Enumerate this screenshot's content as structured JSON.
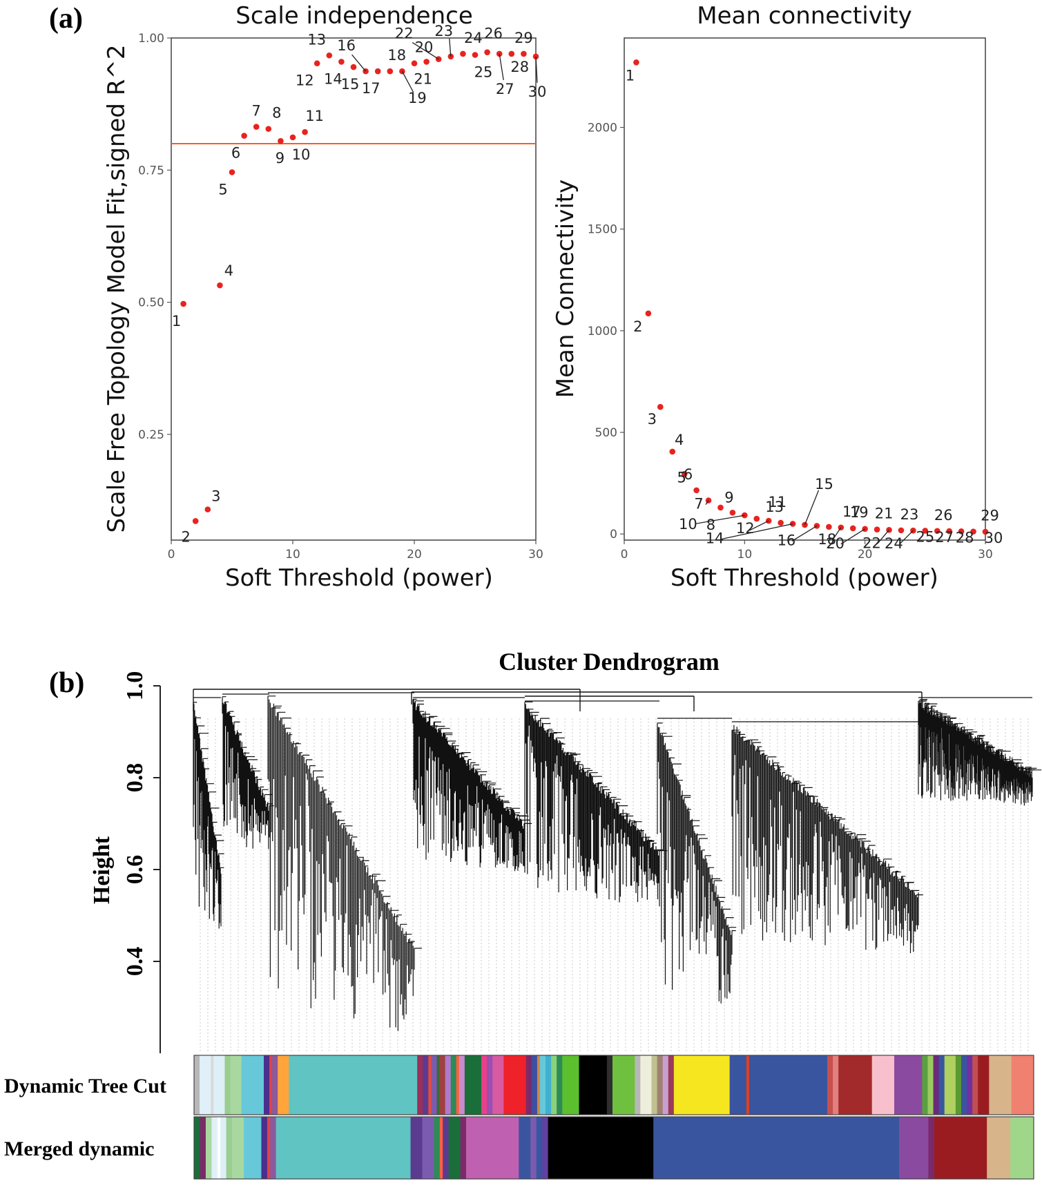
{
  "panels": {
    "a": {
      "tag": "(a)"
    },
    "b": {
      "tag": "(b)"
    }
  },
  "chart_data": [
    {
      "id": "scale-independence",
      "type": "scatter",
      "title": "Scale independence",
      "xlabel": "Soft Threshold (power)",
      "ylabel": "Scale Free Topology Model Fit,signed R^2",
      "xlim": [
        0,
        30
      ],
      "ylim": [
        0.05,
        1.0
      ],
      "xticks": [
        0,
        10,
        20,
        30
      ],
      "yticks": [
        0.25,
        0.5,
        0.75,
        1.0
      ],
      "ytick_labels": [
        "0.25",
        "0.50",
        "0.75",
        "1.00"
      ],
      "threshold_line": 0.8,
      "point_color": "#e8231f",
      "line_color": "#ff5a1f",
      "x": [
        1,
        2,
        3,
        4,
        5,
        6,
        7,
        8,
        9,
        10,
        11,
        12,
        13,
        14,
        15,
        16,
        17,
        18,
        19,
        20,
        21,
        22,
        23,
        24,
        25,
        26,
        27,
        28,
        29,
        30
      ],
      "y": [
        0.497,
        0.086,
        0.108,
        0.532,
        0.746,
        0.815,
        0.832,
        0.828,
        0.805,
        0.812,
        0.822,
        0.952,
        0.967,
        0.955,
        0.945,
        0.937,
        0.937,
        0.937,
        0.937,
        0.952,
        0.955,
        0.96,
        0.965,
        0.97,
        0.968,
        0.973,
        0.97,
        0.97,
        0.97,
        0.965
      ],
      "labels": [
        "1",
        "2",
        "3",
        "4",
        "5",
        "6",
        "7",
        "8",
        "9",
        "10",
        "11",
        "12",
        "13",
        "14",
        "15",
        "16",
        "17",
        "18",
        "19",
        "20",
        "21",
        "22",
        "23",
        "24",
        "25",
        "26",
        "27",
        "28",
        "29",
        "30"
      ]
    },
    {
      "id": "mean-connectivity",
      "type": "scatter",
      "title": "Mean connectivity",
      "xlabel": "Soft Threshold (power)",
      "ylabel": "Mean Connectivity",
      "xlim": [
        0,
        30
      ],
      "ylim": [
        -30,
        2440
      ],
      "xticks": [
        0,
        10,
        20,
        30
      ],
      "yticks": [
        0,
        500,
        1000,
        1500,
        2000
      ],
      "ytick_labels": [
        "0",
        "500",
        "1000",
        "1500",
        "2000"
      ],
      "point_color": "#e8231f",
      "x": [
        1,
        2,
        3,
        4,
        5,
        6,
        7,
        8,
        9,
        10,
        11,
        12,
        13,
        14,
        15,
        16,
        17,
        18,
        19,
        20,
        21,
        22,
        23,
        24,
        25,
        26,
        27,
        28,
        29,
        30
      ],
      "y": [
        2320,
        1085,
        625,
        405,
        295,
        215,
        165,
        130,
        105,
        92,
        75,
        65,
        55,
        50,
        45,
        40,
        35,
        32,
        28,
        25,
        22,
        20,
        18,
        17,
        16,
        15,
        14,
        13,
        12,
        11
      ],
      "labels": [
        "1",
        "2",
        "3",
        "4",
        "5",
        "6",
        "7",
        "8",
        "9",
        "10",
        "11",
        "12",
        "13",
        "14",
        "15",
        "16",
        "17",
        "18",
        "19",
        "20",
        "21",
        "22",
        "23",
        "24",
        "25",
        "26",
        "27",
        "28",
        "29",
        "30"
      ]
    },
    {
      "id": "cluster-dendrogram",
      "type": "dendrogram",
      "title": "Cluster Dendrogram",
      "ylabel": "Height",
      "ylim": [
        0.2,
        1.0
      ],
      "yticks": [
        0.4,
        0.6,
        0.8,
        1.0
      ],
      "ytick_labels": [
        "0.4",
        "0.6",
        "0.8",
        "1.0"
      ],
      "color_rows": [
        {
          "label": "Dynamic Tree Cut",
          "blocks": [
            [
              "#b8b8b8",
              1
            ],
            [
              "#e0f0f8",
              2
            ],
            [
              "#d9d9d9",
              0.5
            ],
            [
              "#ddeff7",
              2
            ],
            [
              "#9acd8f",
              1
            ],
            [
              "#a8d8a0",
              2
            ],
            [
              "#66c8d9",
              4
            ],
            [
              "#4b2e8f",
              1
            ],
            [
              "#d44",
              0.5
            ],
            [
              "#8b5a9e",
              1
            ],
            [
              "#ffa53a",
              2
            ],
            [
              "#5fc4c2",
              23
            ],
            [
              "#9b2f5a",
              1
            ],
            [
              "#5b3b90",
              1
            ],
            [
              "#e84a3b",
              0.5
            ],
            [
              "#7b5bb0",
              1
            ],
            [
              "#3a6b3a",
              0.5
            ],
            [
              "#a04040",
              1
            ],
            [
              "#b07acc",
              1
            ],
            [
              "#2e8b57",
              1
            ],
            [
              "#ff6040",
              0.5
            ],
            [
              "#c98bcc",
              1
            ],
            [
              "#1a6e3a",
              3
            ],
            [
              "#e8408a",
              1
            ],
            [
              "#9b4fb0",
              1
            ],
            [
              "#d85aa0",
              2
            ],
            [
              "#ee2228",
              4
            ],
            [
              "#7a2a6a",
              1
            ],
            [
              "#3f4fa0",
              1
            ],
            [
              "#cc8844",
              0.5
            ],
            [
              "#66c8d9",
              1
            ],
            [
              "#3fb0d0",
              1
            ],
            [
              "#8bd17a",
              1
            ],
            [
              "#2e8b57",
              1
            ],
            [
              "#5bbf2e",
              3
            ],
            [
              "#000000",
              5
            ],
            [
              "#2f2f2f",
              1
            ],
            [
              "#70c040",
              4
            ],
            [
              "#b8b8b8",
              1
            ],
            [
              "#eeeedd",
              2
            ],
            [
              "#c0c090",
              1
            ],
            [
              "#a08070",
              1
            ],
            [
              "#c8a0d0",
              1
            ],
            [
              "#9b3a5a",
              1
            ],
            [
              "#f5e620",
              10
            ],
            [
              "#3a55a0",
              3
            ],
            [
              "#e04020",
              0.5
            ],
            [
              "#3a55a0",
              14
            ],
            [
              "#c85050",
              1
            ],
            [
              "#e08080",
              1
            ],
            [
              "#a32a2a",
              6
            ],
            [
              "#f8c0cc",
              4
            ],
            [
              "#8a4aa0",
              5
            ],
            [
              "#5aa040",
              1
            ],
            [
              "#9cc860",
              1
            ],
            [
              "#6a2a7a",
              1
            ],
            [
              "#3a55a0",
              1
            ],
            [
              "#b0d060",
              2
            ],
            [
              "#5a9a30",
              1
            ],
            [
              "#3a55a0",
              1
            ],
            [
              "#7030a0",
              1
            ],
            [
              "#c05050",
              1
            ],
            [
              "#9b1c20",
              2
            ],
            [
              "#d8b48a",
              4
            ],
            [
              "#f08070",
              4
            ]
          ]
        },
        {
          "label": "Merged dynamic",
          "blocks": [
            [
              "#1b6e3a",
              1
            ],
            [
              "#7a2a6a",
              1
            ],
            [
              "#a8d8a0",
              1
            ],
            [
              "#e0f0f8",
              1
            ],
            [
              "#ffffff",
              0.5
            ],
            [
              "#ddeff7",
              1
            ],
            [
              "#9acd8f",
              1
            ],
            [
              "#a8d8a0",
              2
            ],
            [
              "#66c8d9",
              3
            ],
            [
              "#4b2e8f",
              1
            ],
            [
              "#d44",
              0.5
            ],
            [
              "#8b5a9e",
              1
            ],
            [
              "#5fc4c2",
              23
            ],
            [
              "#5b3b90",
              2
            ],
            [
              "#7b5bb0",
              2
            ],
            [
              "#2e8b57",
              1
            ],
            [
              "#ff6040",
              0.5
            ],
            [
              "#5b3b90",
              1
            ],
            [
              "#1a6e3a",
              2
            ],
            [
              "#7b2a6a",
              1
            ],
            [
              "#c060b0",
              9
            ],
            [
              "#3a55a0",
              2
            ],
            [
              "#7b5bb0",
              1
            ],
            [
              "#3a55a0",
              1
            ],
            [
              "#6040a0",
              1
            ],
            [
              "#000000",
              18
            ],
            [
              "#3a55a0",
              42
            ],
            [
              "#8a4aa0",
              5
            ],
            [
              "#7a2a6a",
              1
            ],
            [
              "#9b1c20",
              9
            ],
            [
              "#d8b48a",
              4
            ],
            [
              "#a0d68a",
              4
            ]
          ]
        }
      ]
    }
  ]
}
